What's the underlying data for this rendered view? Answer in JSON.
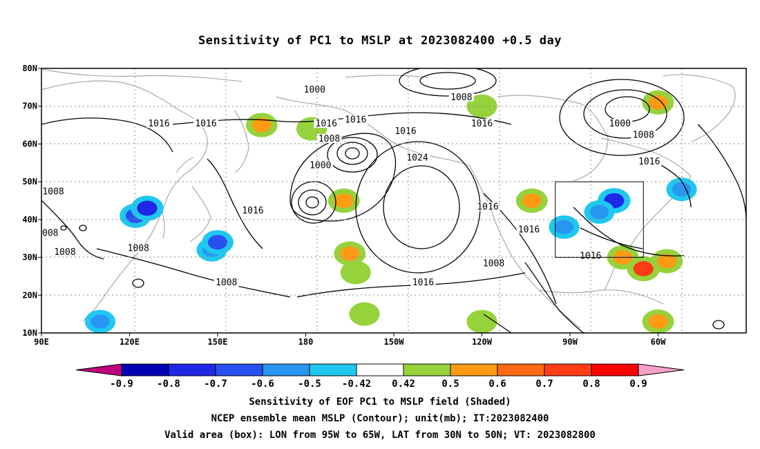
{
  "title": "Sensitivity of PC1 to MSLP at 2023082400 +0.5 day",
  "map": {
    "lat_ticks": [
      "80N",
      "70N",
      "60N",
      "50N",
      "40N",
      "30N",
      "20N",
      "10N"
    ],
    "lon_ticks": [
      "90E",
      "120E",
      "150E",
      "180",
      "150W",
      "120W",
      "90W",
      "60W"
    ],
    "valid_box": {
      "lon_min_w": 95,
      "lon_max_w": 65,
      "lat_min": 30,
      "lat_max": 50
    },
    "contour_labels": [
      {
        "text": "1000",
        "lon": -177,
        "lat": 74
      },
      {
        "text": "1008",
        "lon": -127,
        "lat": 72
      },
      {
        "text": "1016",
        "lon": -163,
        "lat": 66
      },
      {
        "text": "1000",
        "lon": -73,
        "lat": 65
      },
      {
        "text": "1008",
        "lon": -65,
        "lat": 62
      },
      {
        "text": "1016",
        "lon": 130,
        "lat": 65
      },
      {
        "text": "1016",
        "lon": 146,
        "lat": 65
      },
      {
        "text": "1016",
        "lon": -173,
        "lat": 65
      },
      {
        "text": "1008",
        "lon": -172,
        "lat": 61
      },
      {
        "text": "1016",
        "lon": -146,
        "lat": 63
      },
      {
        "text": "1016",
        "lon": -120,
        "lat": 65
      },
      {
        "text": "1000",
        "lon": -175,
        "lat": 54
      },
      {
        "text": "1024",
        "lon": -142,
        "lat": 56
      },
      {
        "text": "1016",
        "lon": -63,
        "lat": 55
      },
      {
        "text": "1008",
        "lon": 94,
        "lat": 47
      },
      {
        "text": "1016",
        "lon": 162,
        "lat": 42
      },
      {
        "text": "1016",
        "lon": -118,
        "lat": 43
      },
      {
        "text": "1016",
        "lon": -104,
        "lat": 37
      },
      {
        "text": "008",
        "lon": 93,
        "lat": 36
      },
      {
        "text": "1008",
        "lon": 98,
        "lat": 31
      },
      {
        "text": "1008",
        "lon": 123,
        "lat": 32
      },
      {
        "text": "1016",
        "lon": -83,
        "lat": 30
      },
      {
        "text": "1008",
        "lon": -116,
        "lat": 28
      },
      {
        "text": "1008",
        "lon": 153,
        "lat": 23
      },
      {
        "text": "1016",
        "lon": -140,
        "lat": 23
      }
    ],
    "shaded_areas": [
      {
        "lon": 122,
        "lat": 41,
        "level": -0.6
      },
      {
        "lon": 126,
        "lat": 43,
        "level": -0.7
      },
      {
        "lon": 148,
        "lat": 32,
        "level": -0.5
      },
      {
        "lon": 150,
        "lat": 34,
        "level": -0.6
      },
      {
        "lon": 110,
        "lat": 13,
        "level": -0.5
      },
      {
        "lon": -75,
        "lat": 45,
        "level": -0.7
      },
      {
        "lon": -80,
        "lat": 42,
        "level": -0.5
      },
      {
        "lon": -92,
        "lat": 38,
        "level": -0.5
      },
      {
        "lon": -52,
        "lat": 48,
        "level": -0.5
      },
      {
        "lon": 165,
        "lat": 65,
        "level": 0.6
      },
      {
        "lon": -178,
        "lat": 64,
        "level": 0.5
      },
      {
        "lon": -167,
        "lat": 45,
        "level": 0.6
      },
      {
        "lon": -165,
        "lat": 31,
        "level": 0.6
      },
      {
        "lon": -163,
        "lat": 26,
        "level": 0.5
      },
      {
        "lon": -160,
        "lat": 15,
        "level": 0.5
      },
      {
        "lon": -120,
        "lat": 13,
        "level": 0.5
      },
      {
        "lon": -103,
        "lat": 45,
        "level": 0.6
      },
      {
        "lon": -72,
        "lat": 30,
        "level": 0.6
      },
      {
        "lon": -65,
        "lat": 27,
        "level": 0.7
      },
      {
        "lon": -57,
        "lat": 29,
        "level": 0.6
      },
      {
        "lon": -60,
        "lat": 13,
        "level": 0.6
      },
      {
        "lon": -120,
        "lat": 70,
        "level": 0.5
      },
      {
        "lon": -60,
        "lat": 71,
        "level": 0.6
      }
    ]
  },
  "colorbar": {
    "colors": [
      "#c0007e",
      "#0000b4",
      "#1e28e6",
      "#2850f0",
      "#2896f0",
      "#1ec8f0",
      "#ffffff",
      "#96d23c",
      "#ff9a14",
      "#ff6a14",
      "#ff3c14",
      "#ff0000",
      "#f8a0c8"
    ],
    "labels": [
      "-0.9",
      "-0.8",
      "-0.7",
      "-0.6",
      "-0.5",
      "-0.42",
      "0.42",
      "0.5",
      "0.6",
      "0.7",
      "0.8",
      "0.9"
    ]
  },
  "caption1": "Sensitivity of EOF PC1 to MSLP field (Shaded)",
  "caption2": "NCEP ensemble mean MSLP (Contour); unit(mb); IT:2023082400",
  "caption3": "Valid area (box): LON from 95W to 65W, LAT from 30N to 50N; VT: 2023082800"
}
